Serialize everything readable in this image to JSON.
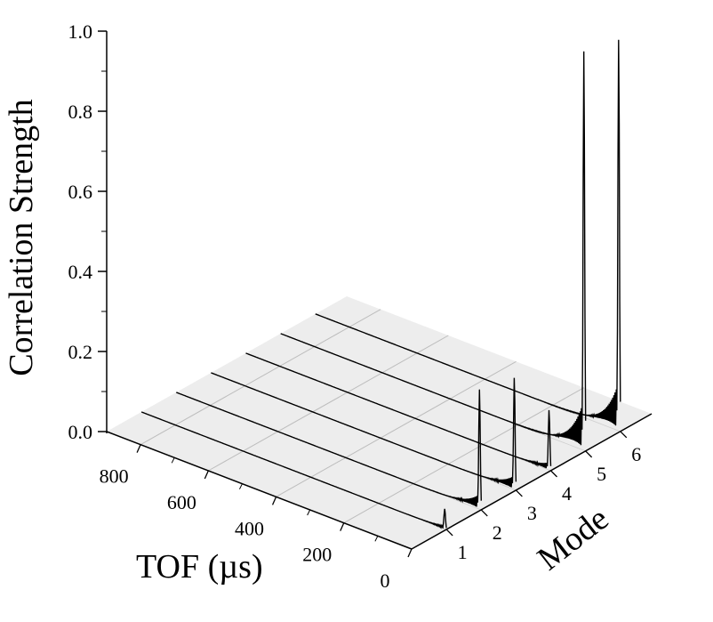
{
  "chart_data": {
    "type": "line",
    "subtype": "3d-waterfall",
    "title": "",
    "zlabel": "Correlation Strength",
    "xlabel": "TOF (µs)",
    "ylabel": "Mode",
    "zlim": [
      0,
      1.0
    ],
    "z_ticks": [
      "0.0",
      "0.2",
      "0.4",
      "0.6",
      "0.8",
      "1.0"
    ],
    "x_ticks": [
      "0",
      "200",
      "400",
      "600",
      "800"
    ],
    "y_ticks": [
      "1",
      "2",
      "3",
      "4",
      "5",
      "6"
    ],
    "xlim": [
      0,
      900
    ],
    "grid": true,
    "series": [
      {
        "mode": 1,
        "peak_tof": 5,
        "peak_value": 0.05
      },
      {
        "mode": 2,
        "peak_tof": 5,
        "peak_value": 0.3
      },
      {
        "mode": 3,
        "peak_tof": 5,
        "peak_value": 0.28
      },
      {
        "mode": 4,
        "peak_tof": 5,
        "peak_value": 0.15
      },
      {
        "mode": 5,
        "peak_tof": 5,
        "peak_value": 1.0
      },
      {
        "mode": 6,
        "peak_tof": 5,
        "peak_value": 0.98
      }
    ]
  }
}
